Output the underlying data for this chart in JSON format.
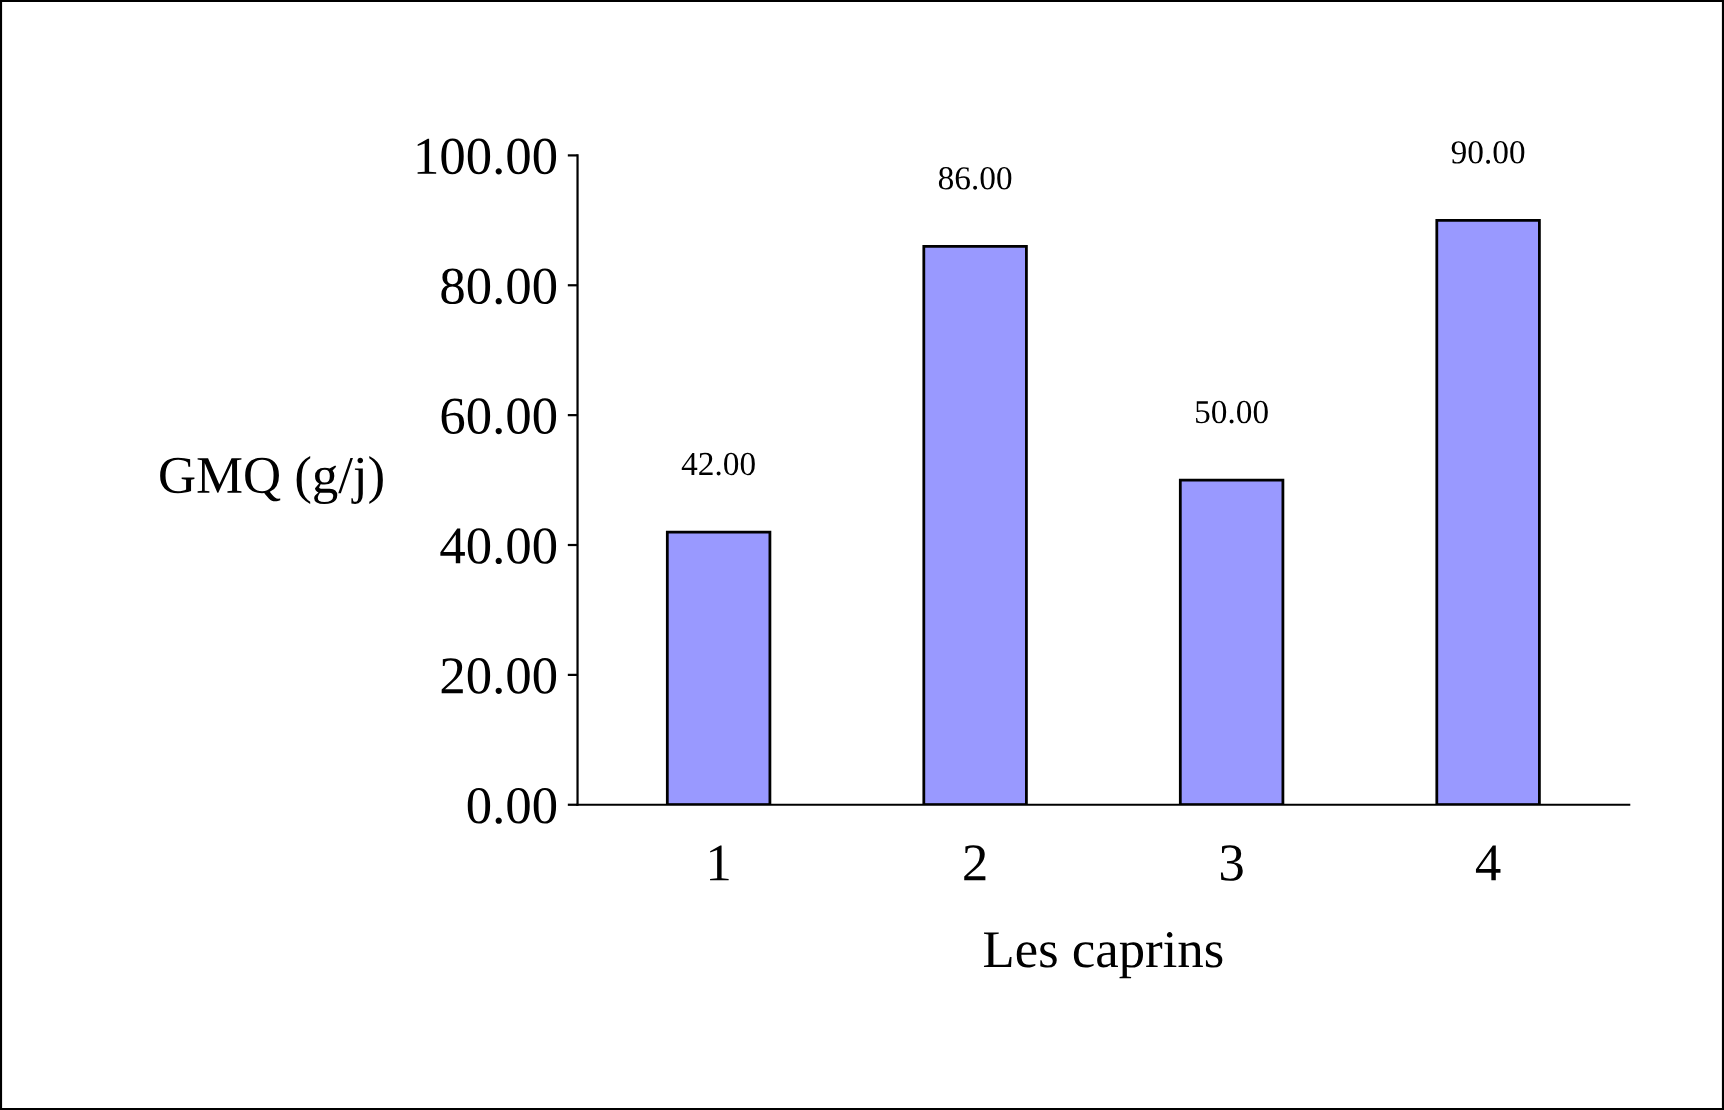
{
  "chart_data": {
    "type": "bar",
    "xlabel": "Les caprins",
    "ylabel": "GMQ (g/j)",
    "categories": [
      "1",
      "2",
      "3",
      "4"
    ],
    "values": [
      42,
      86,
      50,
      90
    ],
    "value_labels": [
      "42.00",
      "86.00",
      "50.00",
      "90.00"
    ],
    "color": "#9999ff",
    "ylim": [
      0,
      100
    ],
    "yticks": [
      {
        "value": 0,
        "label": "0.00"
      },
      {
        "value": 20,
        "label": "20.00"
      },
      {
        "value": 40,
        "label": "40.00"
      },
      {
        "value": 60,
        "label": "60.00"
      },
      {
        "value": 80,
        "label": "80.00"
      },
      {
        "value": 100,
        "label": "100.00"
      }
    ],
    "grid": false,
    "legend": false
  }
}
